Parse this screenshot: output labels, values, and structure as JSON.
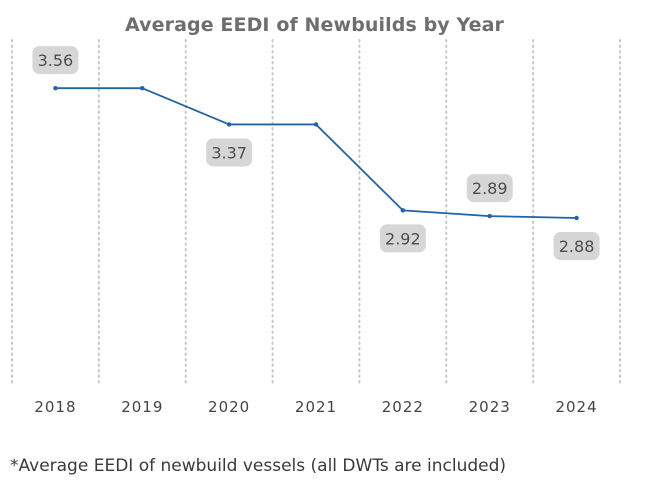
{
  "chart_data": {
    "type": "line",
    "title": "Average EEDI of Newbuilds by Year",
    "xlabel": "",
    "ylabel": "",
    "x": [
      "2018",
      "2019",
      "2020",
      "2021",
      "2022",
      "2023",
      "2024"
    ],
    "series": [
      {
        "values": [
          3.56,
          3.56,
          3.37,
          3.37,
          2.92,
          2.89,
          2.88
        ]
      }
    ],
    "data_labels": [
      {
        "x": "2018",
        "text": "3.56",
        "position": "above"
      },
      {
        "x": "2020",
        "text": "3.37",
        "position": "below"
      },
      {
        "x": "2022",
        "text": "2.92",
        "position": "below"
      },
      {
        "x": "2023",
        "text": "2.89",
        "position": "above"
      },
      {
        "x": "2024",
        "text": "2.88",
        "position": "below"
      }
    ],
    "ylim": [
      2.0,
      3.76
    ],
    "grid": "vertical dotted separators",
    "legend": "none",
    "colors": {
      "line": "#1f63a8",
      "label_box": "#d6d6d6",
      "label_text": "#4d4d4d",
      "axis_text": "#444444",
      "title": "#6e6e6e",
      "grid": "#c8c8c8"
    }
  },
  "footnote": "*Average EEDI of newbuild vessels (all DWTs are included)"
}
